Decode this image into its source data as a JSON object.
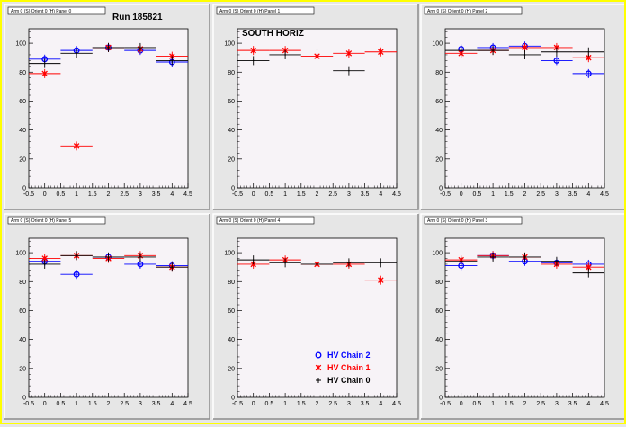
{
  "colors": {
    "canvas_bg": "#e6e6e6",
    "frame_border": "#ffff00",
    "plot_bg": "#f7f3f7",
    "series_blue": "#0000ff",
    "series_red": "#ff0000",
    "series_black": "#000000"
  },
  "legend": {
    "entries": [
      {
        "label": "HV Chain 2",
        "color": "#0000ff",
        "marker": "circle"
      },
      {
        "label": "HV Chain 1",
        "color": "#ff0000",
        "marker": "star"
      },
      {
        "label": "HV Chain 0",
        "color": "#000000",
        "marker": "plus"
      }
    ]
  },
  "chart_data": [
    {
      "type": "scatter",
      "panel_title": "Arm 0 (S) Orient 0 (H) Panel 0",
      "title": "Run 185821",
      "xlim": [
        -0.5,
        4.5
      ],
      "ylim": [
        0,
        110
      ],
      "xticks_labeled": [
        "-0.5",
        "0",
        "0.5",
        "1",
        "1.5",
        "2",
        "2.5",
        "3",
        "3.5",
        "4",
        "4.5"
      ],
      "yticks_labeled": [
        "0",
        "20",
        "40",
        "60",
        "80",
        "100"
      ],
      "grid": false,
      "series": [
        {
          "x": [
            0,
            1,
            2,
            3,
            4
          ],
          "y": [
            89,
            95,
            97,
            95,
            87
          ],
          "color": "#0000ff",
          "marker": "circle"
        },
        {
          "x": [
            0,
            1,
            2,
            3,
            4
          ],
          "y": [
            79,
            29,
            97,
            96,
            91
          ],
          "color": "#ff0000",
          "marker": "star"
        },
        {
          "x": [
            0,
            1,
            2,
            3,
            4
          ],
          "y": [
            86,
            93,
            97,
            97,
            88
          ],
          "color": "#000000",
          "marker": "plus"
        }
      ]
    },
    {
      "type": "scatter",
      "panel_title": "Arm 0 (S) Orient 0 (H) Panel 1",
      "title": "SOUTH HORIZ",
      "xlim": [
        -0.5,
        4.5
      ],
      "ylim": [
        0,
        110
      ],
      "xticks_labeled": [
        "-0.5",
        "0",
        "0.5",
        "1",
        "1.5",
        "2",
        "2.5",
        "3",
        "3.5",
        "4",
        "4.5"
      ],
      "yticks_labeled": [
        "0",
        "20",
        "40",
        "60",
        "80",
        "100"
      ],
      "grid": false,
      "series": [
        {
          "x": [],
          "y": [],
          "color": "#0000ff",
          "marker": "circle"
        },
        {
          "x": [
            0,
            1,
            2,
            3,
            4
          ],
          "y": [
            95,
            95,
            91,
            93,
            94
          ],
          "color": "#ff0000",
          "marker": "star"
        },
        {
          "x": [
            0,
            1,
            2,
            3
          ],
          "y": [
            88,
            92,
            96,
            81
          ],
          "color": "#000000",
          "marker": "plus"
        }
      ]
    },
    {
      "type": "scatter",
      "panel_title": "Arm 0 (S) Orient 0 (H) Panel 2",
      "title": "",
      "xlim": [
        -0.5,
        4.5
      ],
      "ylim": [
        0,
        110
      ],
      "xticks_labeled": [
        "-0.5",
        "0",
        "0.5",
        "1",
        "1.5",
        "2",
        "2.5",
        "3",
        "3.5",
        "4",
        "4.5"
      ],
      "yticks_labeled": [
        "0",
        "20",
        "40",
        "60",
        "80",
        "100"
      ],
      "grid": false,
      "series": [
        {
          "x": [
            0,
            1,
            2,
            3,
            4
          ],
          "y": [
            96,
            97,
            98,
            88,
            79
          ],
          "color": "#0000ff",
          "marker": "circle"
        },
        {
          "x": [
            0,
            1,
            2,
            3,
            4
          ],
          "y": [
            93,
            95,
            97,
            97,
            90
          ],
          "color": "#ff0000",
          "marker": "star"
        },
        {
          "x": [
            0,
            1,
            2,
            3,
            4
          ],
          "y": [
            95,
            95,
            92,
            94,
            94
          ],
          "color": "#000000",
          "marker": "plus"
        }
      ]
    },
    {
      "type": "scatter",
      "panel_title": "Arm 0 (S) Orient 0 (H) Panel 5",
      "title": "",
      "xlim": [
        -0.5,
        4.5
      ],
      "ylim": [
        0,
        110
      ],
      "xticks_labeled": [
        "-0.5",
        "0",
        "0.5",
        "1",
        "1.5",
        "2",
        "2.5",
        "3",
        "3.5",
        "4",
        "4.5"
      ],
      "yticks_labeled": [
        "0",
        "20",
        "40",
        "60",
        "80",
        "100"
      ],
      "grid": false,
      "series": [
        {
          "x": [
            0,
            1,
            2,
            3,
            4
          ],
          "y": [
            94,
            85,
            97,
            92,
            91
          ],
          "color": "#0000ff",
          "marker": "circle"
        },
        {
          "x": [
            0,
            1,
            2,
            3,
            4
          ],
          "y": [
            96,
            98,
            96,
            98,
            90
          ],
          "color": "#ff0000",
          "marker": "star"
        },
        {
          "x": [
            0,
            1,
            2,
            3,
            4
          ],
          "y": [
            92,
            98,
            97,
            97,
            90
          ],
          "color": "#000000",
          "marker": "plus"
        }
      ]
    },
    {
      "type": "scatter",
      "panel_title": "Arm 0 (S) Orient 0 (H) Panel 4",
      "title": "",
      "xlim": [
        -0.5,
        4.5
      ],
      "ylim": [
        0,
        110
      ],
      "xticks_labeled": [
        "-0.5",
        "0",
        "0.5",
        "1",
        "1.5",
        "2",
        "2.5",
        "3",
        "3.5",
        "4",
        "4.5"
      ],
      "yticks_labeled": [
        "0",
        "20",
        "40",
        "60",
        "80",
        "100"
      ],
      "grid": false,
      "series": [
        {
          "x": [],
          "y": [],
          "color": "#0000ff",
          "marker": "circle"
        },
        {
          "x": [
            0,
            1,
            2,
            3,
            4
          ],
          "y": [
            92,
            95,
            92,
            92,
            81
          ],
          "color": "#ff0000",
          "marker": "star"
        },
        {
          "x": [
            0,
            1,
            2,
            3,
            4
          ],
          "y": [
            95,
            93,
            92,
            93,
            93
          ],
          "color": "#000000",
          "marker": "plus"
        }
      ]
    },
    {
      "type": "scatter",
      "panel_title": "Arm 0 (S) Orient 0 (H) Panel 3",
      "title": "",
      "xlim": [
        -0.5,
        4.5
      ],
      "ylim": [
        0,
        110
      ],
      "xticks_labeled": [
        "-0.5",
        "0",
        "0.5",
        "1",
        "1.5",
        "2",
        "2.5",
        "3",
        "3.5",
        "4",
        "4.5"
      ],
      "yticks_labeled": [
        "0",
        "20",
        "40",
        "60",
        "80",
        "100"
      ],
      "grid": false,
      "series": [
        {
          "x": [
            0,
            1,
            2,
            3,
            4
          ],
          "y": [
            91,
            98,
            94,
            93,
            92
          ],
          "color": "#0000ff",
          "marker": "circle"
        },
        {
          "x": [
            0,
            1,
            2,
            3,
            4
          ],
          "y": [
            95,
            98,
            97,
            92,
            90
          ],
          "color": "#ff0000",
          "marker": "star"
        },
        {
          "x": [
            0,
            1,
            2,
            3,
            4
          ],
          "y": [
            94,
            97,
            97,
            94,
            86
          ],
          "color": "#000000",
          "marker": "plus"
        }
      ]
    }
  ]
}
